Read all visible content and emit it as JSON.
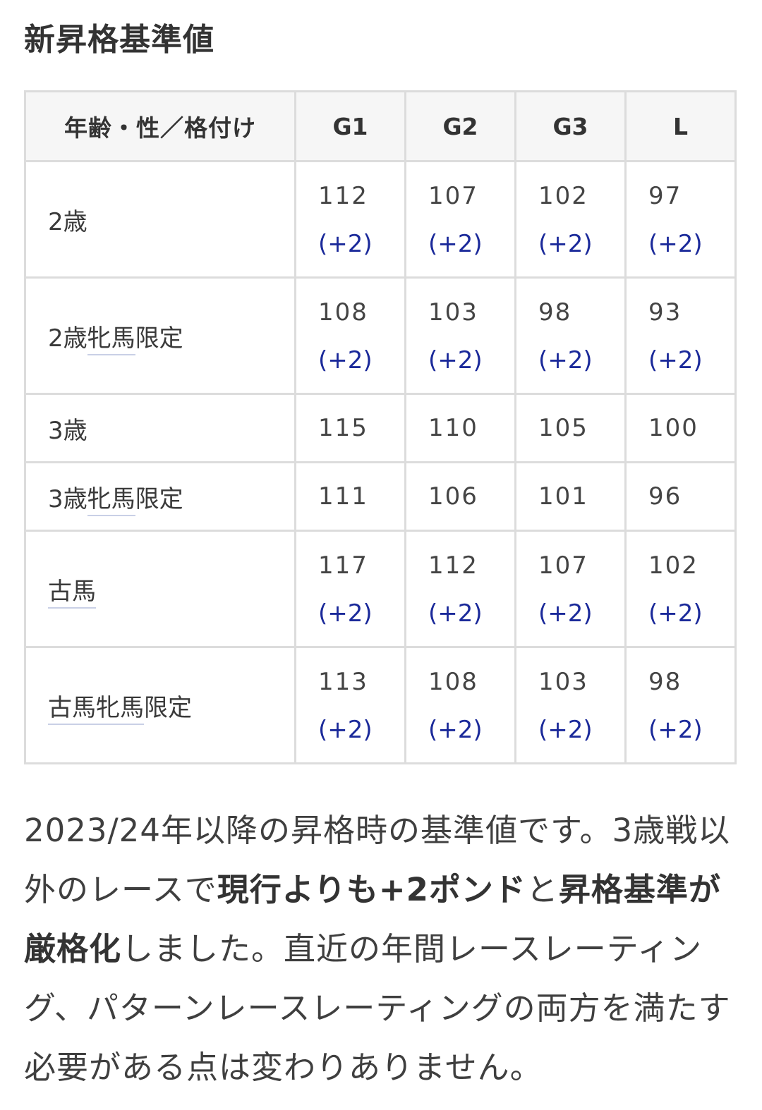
{
  "heading": "新昇格基準値",
  "table": {
    "headers": [
      "年齢・性／格付け",
      "G1",
      "G2",
      "G3",
      "L"
    ],
    "rows": [
      {
        "label": "2歳",
        "label_parts": [
          "2歳"
        ],
        "underlined": [],
        "cells": [
          {
            "value": "112",
            "delta": "(+2)"
          },
          {
            "value": "107",
            "delta": "(+2)"
          },
          {
            "value": "102",
            "delta": "(+2)"
          },
          {
            "value": "97",
            "delta": "(+2)"
          }
        ]
      },
      {
        "label": "2歳牝馬限定",
        "label_parts": [
          "2歳",
          "牝馬",
          "限定"
        ],
        "underlined": [
          1
        ],
        "cells": [
          {
            "value": "108",
            "delta": "(+2)"
          },
          {
            "value": "103",
            "delta": "(+2)"
          },
          {
            "value": "98",
            "delta": "(+2)"
          },
          {
            "value": "93",
            "delta": "(+2)"
          }
        ]
      },
      {
        "label": "3歳",
        "label_parts": [
          "3歳"
        ],
        "underlined": [],
        "cells": [
          {
            "value": "115",
            "delta": ""
          },
          {
            "value": "110",
            "delta": ""
          },
          {
            "value": "105",
            "delta": ""
          },
          {
            "value": "100",
            "delta": ""
          }
        ]
      },
      {
        "label": "3歳牝馬限定",
        "label_parts": [
          "3歳",
          "牝馬",
          "限定"
        ],
        "underlined": [
          1
        ],
        "cells": [
          {
            "value": "111",
            "delta": ""
          },
          {
            "value": "106",
            "delta": ""
          },
          {
            "value": "101",
            "delta": ""
          },
          {
            "value": "96",
            "delta": ""
          }
        ]
      },
      {
        "label": "古馬",
        "label_parts": [
          "古馬"
        ],
        "underlined": [
          0
        ],
        "cells": [
          {
            "value": "117",
            "delta": "(+2)"
          },
          {
            "value": "112",
            "delta": "(+2)"
          },
          {
            "value": "107",
            "delta": "(+2)"
          },
          {
            "value": "102",
            "delta": "(+2)"
          }
        ]
      },
      {
        "label": "古馬牝馬限定",
        "label_parts": [
          "古馬牝馬",
          "限定"
        ],
        "underlined": [
          0
        ],
        "cells": [
          {
            "value": "113",
            "delta": "(+2)"
          },
          {
            "value": "108",
            "delta": "(+2)"
          },
          {
            "value": "103",
            "delta": "(+2)"
          },
          {
            "value": "98",
            "delta": "(+2)"
          }
        ]
      }
    ]
  },
  "note": {
    "segments": [
      {
        "text": "2023/24年以降の昇格時の基準値です。3歳戦以外のレースで",
        "bold": false
      },
      {
        "text": "現行よりも+2ポンド",
        "bold": true
      },
      {
        "text": "と",
        "bold": false
      },
      {
        "text": "昇格基準が厳格化",
        "bold": true
      },
      {
        "text": "しました。直近の年間レースレーティング、パターンレースレーティングの両方を満たす必要がある点は変わりありません。",
        "bold": false
      }
    ]
  },
  "colors": {
    "delta": "#1b2a9a",
    "border": "#dcdcdc",
    "header_bg": "#f6f6f6"
  }
}
